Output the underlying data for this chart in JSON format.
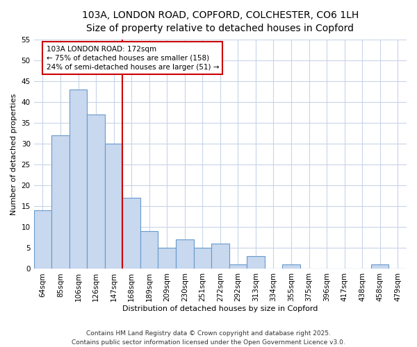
{
  "title_line1": "103A, LONDON ROAD, COPFORD, COLCHESTER, CO6 1LH",
  "title_line2": "Size of property relative to detached houses in Copford",
  "xlabel": "Distribution of detached houses by size in Copford",
  "ylabel": "Number of detached properties",
  "categories": [
    "64sqm",
    "85sqm",
    "106sqm",
    "126sqm",
    "147sqm",
    "168sqm",
    "189sqm",
    "209sqm",
    "230sqm",
    "251sqm",
    "272sqm",
    "292sqm",
    "313sqm",
    "334sqm",
    "355sqm",
    "375sqm",
    "396sqm",
    "417sqm",
    "438sqm",
    "458sqm",
    "479sqm"
  ],
  "values": [
    14,
    32,
    43,
    37,
    30,
    17,
    9,
    5,
    7,
    5,
    6,
    1,
    3,
    0,
    1,
    0,
    0,
    0,
    0,
    1,
    0
  ],
  "bar_color": "#c8d8ee",
  "bar_edge_color": "#6699cc",
  "grid_color": "#c8d4e8",
  "background_color": "#ffffff",
  "vline_x_index": 5,
  "vline_color": "#cc0000",
  "annotation_text": "103A LONDON ROAD: 172sqm\n← 75% of detached houses are smaller (158)\n24% of semi-detached houses are larger (51) →",
  "annotation_box_color": "#ffffff",
  "annotation_box_edge": "#cc0000",
  "footer_line1": "Contains HM Land Registry data © Crown copyright and database right 2025.",
  "footer_line2": "Contains public sector information licensed under the Open Government Licence v3.0.",
  "ylim": [
    0,
    55
  ],
  "yticks": [
    0,
    5,
    10,
    15,
    20,
    25,
    30,
    35,
    40,
    45,
    50,
    55
  ],
  "title_fontsize": 10,
  "subtitle_fontsize": 9,
  "axis_label_fontsize": 8,
  "tick_fontsize": 7.5,
  "annotation_fontsize": 7.5,
  "footer_fontsize": 6.5
}
